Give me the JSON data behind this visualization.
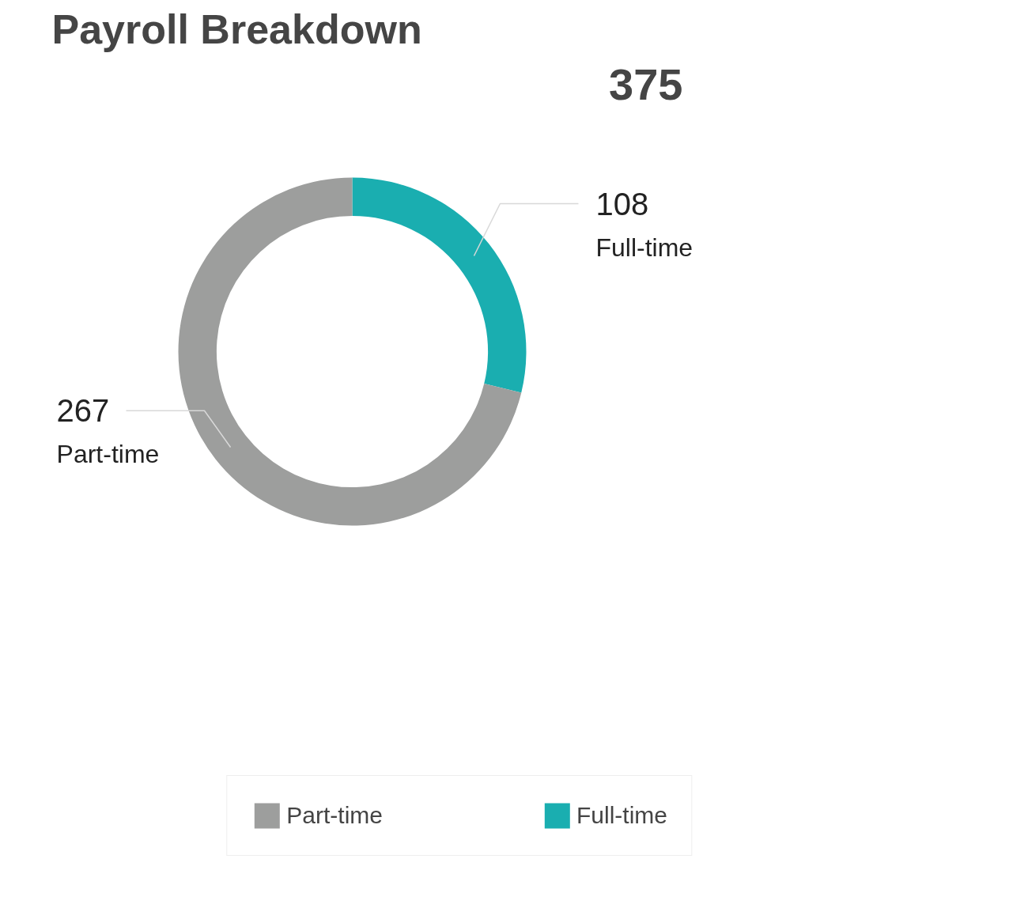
{
  "chart_data": {
    "type": "donut",
    "title": "Payroll Breakdown",
    "annotations": [
      "375"
    ],
    "categories": [
      "Part-time",
      "Full-time"
    ],
    "values": [
      267,
      108
    ],
    "colors": [
      "#9d9e9d",
      "#1aaeb0"
    ],
    "data_labels": true,
    "legend": "bottom"
  }
}
